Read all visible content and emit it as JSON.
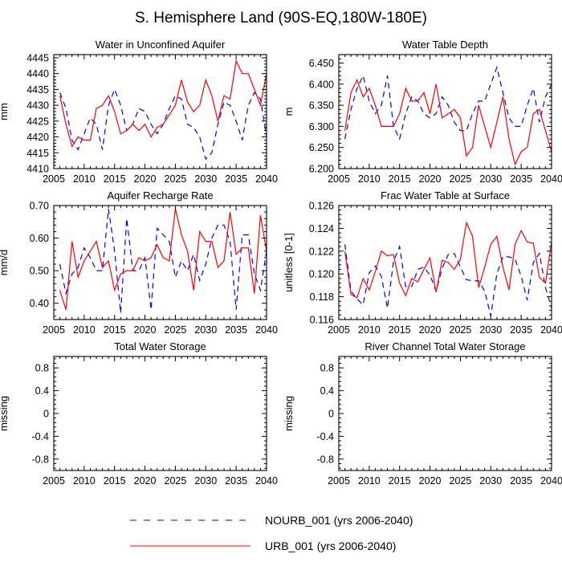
{
  "figure": {
    "title": "S. Hemisphere Land (90S-EQ,180W-180E)"
  },
  "legend": {
    "placement": "bottom-center",
    "entries": [
      {
        "name": "NOURB_001 (yrs 2006-2040)",
        "color": "#0000ff",
        "dash": "dashed"
      },
      {
        "name": "URB_001 (yrs 2006-2040)",
        "color": "#ff0000",
        "dash": "solid"
      }
    ]
  },
  "chart_data": [
    {
      "type": "line",
      "title": "Water in Unconfined Aquifer",
      "ylabel": "mm",
      "xlim": [
        2005,
        2040
      ],
      "ylim": [
        4410,
        4446
      ],
      "xticks": [
        2005,
        2010,
        2015,
        2020,
        2025,
        2030,
        2035,
        2040
      ],
      "yticks": [
        4410,
        4415,
        4420,
        4425,
        4430,
        4435,
        4440,
        4445
      ],
      "ytick_labels": [
        "4410",
        "4415",
        "4420",
        "4425",
        "4430",
        "4435",
        "4440",
        "4445"
      ],
      "x": [
        2006,
        2007,
        2008,
        2009,
        2010,
        2011,
        2012,
        2013,
        2014,
        2015,
        2016,
        2017,
        2018,
        2019,
        2020,
        2021,
        2022,
        2023,
        2024,
        2025,
        2026,
        2027,
        2028,
        2029,
        2030,
        2031,
        2032,
        2033,
        2034,
        2035,
        2036,
        2037,
        2038,
        2039,
        2040
      ],
      "series": [
        {
          "name": "NOURB_001",
          "values": [
            4434,
            4429,
            4419,
            4416,
            4421,
            4426,
            4424,
            4416,
            4430,
            4435,
            4430,
            4422,
            4424,
            4429,
            4428,
            4424,
            4421,
            4424,
            4429,
            4433,
            4432,
            4424,
            4423,
            4420,
            4413,
            4415,
            4424,
            4431,
            4430,
            4425,
            4419,
            4430,
            4434,
            4432,
            4420
          ]
        },
        {
          "name": "URB_001",
          "values": [
            4433,
            4424,
            4417,
            4420,
            4419,
            4419,
            4429,
            4430,
            4433,
            4428,
            4421,
            4422,
            4424,
            4422,
            4424,
            4420,
            4423,
            4424,
            4427,
            4430,
            4438,
            4431,
            4428,
            4430,
            4438,
            4433,
            4425,
            4433,
            4432,
            4444,
            4440,
            4440,
            4435,
            4430,
            4440
          ]
        }
      ]
    },
    {
      "type": "line",
      "title": "Water Table Depth",
      "ylabel": "m",
      "xlim": [
        2005,
        2040
      ],
      "ylim": [
        6.2,
        6.47
      ],
      "xticks": [
        2005,
        2010,
        2015,
        2020,
        2025,
        2030,
        2035,
        2040
      ],
      "yticks": [
        6.2,
        6.25,
        6.3,
        6.35,
        6.4,
        6.45
      ],
      "ytick_labels": [
        "6.200",
        "6.250",
        "6.300",
        "6.350",
        "6.400",
        "6.450"
      ],
      "x": [
        2006,
        2007,
        2008,
        2009,
        2010,
        2011,
        2012,
        2013,
        2014,
        2015,
        2016,
        2017,
        2018,
        2019,
        2020,
        2021,
        2022,
        2023,
        2024,
        2025,
        2026,
        2027,
        2028,
        2029,
        2030,
        2031,
        2032,
        2033,
        2034,
        2035,
        2036,
        2037,
        2038,
        2039,
        2040
      ],
      "series": [
        {
          "name": "NOURB_001",
          "values": [
            6.27,
            6.34,
            6.39,
            6.42,
            6.36,
            6.33,
            6.35,
            6.42,
            6.3,
            6.27,
            6.33,
            6.37,
            6.36,
            6.33,
            6.32,
            6.33,
            6.37,
            6.35,
            6.31,
            6.29,
            6.29,
            6.33,
            6.36,
            6.36,
            6.4,
            6.44,
            6.38,
            6.32,
            6.3,
            6.3,
            6.35,
            6.39,
            6.31,
            6.37,
            6.4
          ]
        },
        {
          "name": "URB_001",
          "values": [
            6.29,
            6.38,
            6.41,
            6.37,
            6.39,
            6.35,
            6.3,
            6.3,
            6.3,
            6.33,
            6.39,
            6.36,
            6.36,
            6.38,
            6.33,
            6.4,
            6.32,
            6.33,
            6.34,
            6.32,
            6.23,
            6.25,
            6.35,
            6.3,
            6.25,
            6.31,
            6.37,
            6.27,
            6.21,
            6.24,
            6.25,
            6.33,
            6.34,
            6.29,
            6.24
          ]
        }
      ]
    },
    {
      "type": "line",
      "title": "Aquifer Recharge Rate",
      "ylabel": "mm/d",
      "xlim": [
        2005,
        2040
      ],
      "ylim": [
        0.35,
        0.7
      ],
      "xticks": [
        2005,
        2010,
        2015,
        2020,
        2025,
        2030,
        2035,
        2040
      ],
      "yticks": [
        0.4,
        0.5,
        0.6,
        0.7
      ],
      "ytick_labels": [
        "0.40",
        "0.50",
        "0.60",
        "0.70"
      ],
      "x": [
        2006,
        2007,
        2008,
        2009,
        2010,
        2011,
        2012,
        2013,
        2014,
        2015,
        2016,
        2017,
        2018,
        2019,
        2020,
        2021,
        2022,
        2023,
        2024,
        2025,
        2026,
        2027,
        2028,
        2029,
        2030,
        2031,
        2032,
        2033,
        2034,
        2035,
        2036,
        2037,
        2038,
        2039,
        2040
      ],
      "series": [
        {
          "name": "NOURB_001",
          "values": [
            0.52,
            0.43,
            0.49,
            0.51,
            0.57,
            0.54,
            0.5,
            0.5,
            0.69,
            0.56,
            0.37,
            0.66,
            0.5,
            0.5,
            0.54,
            0.38,
            0.63,
            0.61,
            0.59,
            0.48,
            0.53,
            0.5,
            0.55,
            0.47,
            0.52,
            0.6,
            0.64,
            0.64,
            0.59,
            0.38,
            0.61,
            0.61,
            0.49,
            0.44,
            0.56
          ]
        },
        {
          "name": "URB_001",
          "values": [
            0.44,
            0.38,
            0.59,
            0.48,
            0.53,
            0.56,
            0.59,
            0.51,
            0.53,
            0.44,
            0.49,
            0.5,
            0.5,
            0.54,
            0.53,
            0.54,
            0.58,
            0.54,
            0.53,
            0.69,
            0.61,
            0.56,
            0.44,
            0.62,
            0.59,
            0.59,
            0.51,
            0.53,
            0.68,
            0.55,
            0.57,
            0.57,
            0.43,
            0.67,
            0.56
          ]
        }
      ]
    },
    {
      "type": "line",
      "title": "Frac Water Table at Surface",
      "ylabel": "unitless [0-1]",
      "xlim": [
        2005,
        2040
      ],
      "ylim": [
        0.116,
        0.126
      ],
      "xticks": [
        2005,
        2010,
        2015,
        2020,
        2025,
        2030,
        2035,
        2040
      ],
      "yticks": [
        0.116,
        0.118,
        0.12,
        0.122,
        0.124,
        0.126
      ],
      "ytick_labels": [
        "0.116",
        "0.118",
        "0.120",
        "0.122",
        "0.124",
        "0.126"
      ],
      "x": [
        2006,
        2007,
        2008,
        2009,
        2010,
        2011,
        2012,
        2013,
        2014,
        2015,
        2016,
        2017,
        2018,
        2019,
        2020,
        2021,
        2022,
        2023,
        2024,
        2025,
        2026,
        2027,
        2028,
        2029,
        2030,
        2031,
        2032,
        2033,
        2034,
        2035,
        2036,
        2037,
        2038,
        2039,
        2040
      ],
      "series": [
        {
          "name": "NOURB_001",
          "values": [
            0.1226,
            0.1185,
            0.1178,
            0.1173,
            0.1201,
            0.1207,
            0.1198,
            0.117,
            0.1211,
            0.1224,
            0.1189,
            0.1189,
            0.1204,
            0.1206,
            0.1199,
            0.1185,
            0.1205,
            0.1217,
            0.1218,
            0.1206,
            0.1195,
            0.1194,
            0.1194,
            0.1185,
            0.1163,
            0.12,
            0.1215,
            0.1215,
            0.1213,
            0.1198,
            0.1177,
            0.121,
            0.1218,
            0.1188,
            0.117
          ]
        },
        {
          "name": "URB_001",
          "values": [
            0.122,
            0.1182,
            0.1179,
            0.1196,
            0.1186,
            0.1202,
            0.122,
            0.1216,
            0.1217,
            0.1192,
            0.1181,
            0.1196,
            0.1193,
            0.1204,
            0.1214,
            0.1184,
            0.1212,
            0.121,
            0.1204,
            0.1213,
            0.1245,
            0.1233,
            0.1188,
            0.1206,
            0.1226,
            0.1233,
            0.1206,
            0.1186,
            0.1226,
            0.1238,
            0.1228,
            0.1227,
            0.1197,
            0.1192,
            0.1228
          ]
        }
      ]
    },
    {
      "type": "line",
      "title": "Total Water Storage",
      "ylabel": "missing",
      "xlim": [
        2005,
        2040
      ],
      "ylim": [
        -1,
        1
      ],
      "xticks": [
        2005,
        2010,
        2015,
        2020,
        2025,
        2030,
        2035,
        2040
      ],
      "yticks": [
        -0.8,
        -0.4,
        0,
        0.4,
        0.8
      ],
      "ytick_labels": [
        "-0.8",
        "-0.4",
        "0",
        "0.4",
        "0.8"
      ],
      "x": [],
      "series": []
    },
    {
      "type": "line",
      "title": "River Channel Total Water Storage",
      "ylabel": "missing",
      "xlim": [
        2005,
        2040
      ],
      "ylim": [
        -1,
        1
      ],
      "xticks": [
        2005,
        2010,
        2015,
        2020,
        2025,
        2030,
        2035,
        2040
      ],
      "yticks": [
        -0.8,
        -0.4,
        0,
        0.4,
        0.8
      ],
      "ytick_labels": [
        "-0.8",
        "-0.4",
        "0",
        "0.4",
        "0.8"
      ],
      "x": [],
      "series": []
    }
  ]
}
